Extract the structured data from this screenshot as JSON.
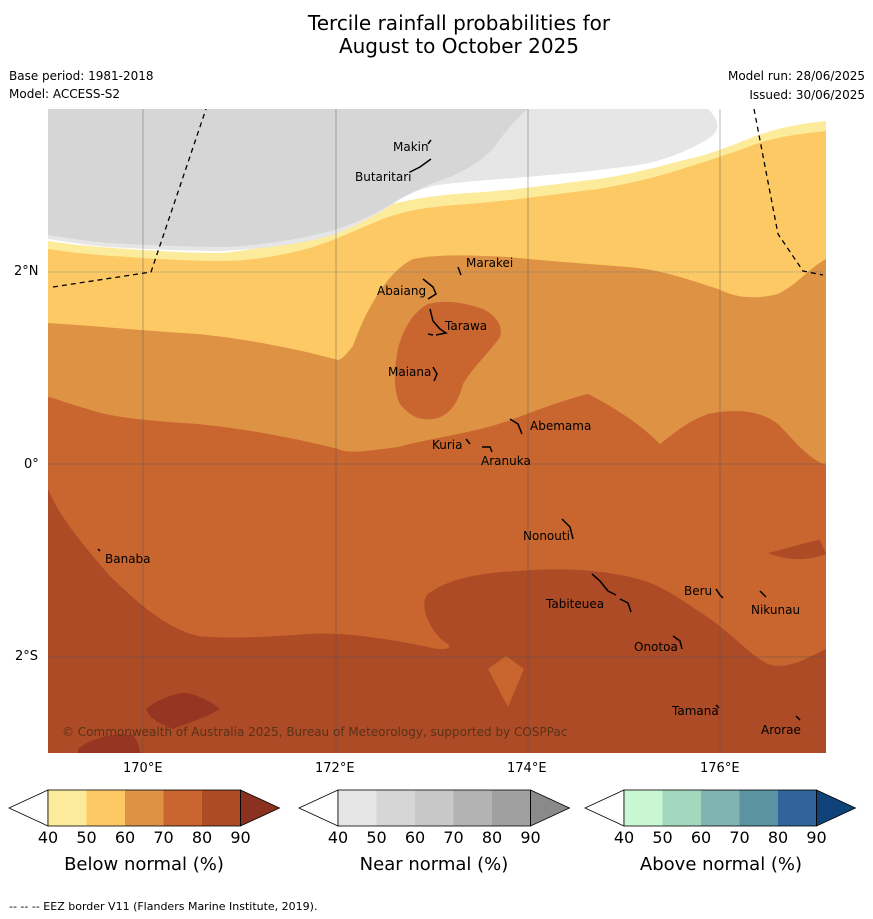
{
  "title": {
    "line1": "Tercile rainfall probabilities for",
    "line2": "August to October 2025"
  },
  "meta": {
    "base_period": "Base period: 1981-2018",
    "model": "Model: ACCESS-S2",
    "model_run": "Model run: 28/06/2025",
    "issued": "Issued: 30/06/2025"
  },
  "axes": {
    "lat_labels": [
      "2°N",
      "0°",
      "2°S"
    ],
    "lon_labels": [
      "170°E",
      "172°E",
      "174°E",
      "176°E"
    ]
  },
  "islands": [
    {
      "name": "Makin"
    },
    {
      "name": "Butaritari"
    },
    {
      "name": "Marakei"
    },
    {
      "name": "Abaiang"
    },
    {
      "name": "Tarawa"
    },
    {
      "name": "Maiana"
    },
    {
      "name": "Abemama"
    },
    {
      "name": "Kuria"
    },
    {
      "name": "Aranuka"
    },
    {
      "name": "Nonouti"
    },
    {
      "name": "Banaba"
    },
    {
      "name": "Beru"
    },
    {
      "name": "Tabiteuea"
    },
    {
      "name": "Nikunau"
    },
    {
      "name": "Onotoa"
    },
    {
      "name": "Tamana"
    },
    {
      "name": "Arorae"
    }
  ],
  "copyright": "© Commonwealth of Australia 2025, Bureau of Meteorology, supported by COSPPac",
  "colorbars": [
    {
      "title": "Below normal (%)",
      "labels": [
        "40",
        "50",
        "60",
        "70",
        "80",
        "90"
      ],
      "colors": [
        "#ffffff",
        "#fdeb9c",
        "#fdc964",
        "#de9244",
        "#c9652f",
        "#ad4b26",
        "#8c3020"
      ]
    },
    {
      "title": "Near normal (%)",
      "labels": [
        "40",
        "50",
        "60",
        "70",
        "80",
        "90"
      ],
      "colors": [
        "#ffffff",
        "#e6e6e6",
        "#d6d6d6",
        "#c8c8c8",
        "#b3b3b3",
        "#a0a0a0",
        "#8a8a8a"
      ]
    },
    {
      "title": "Above normal (%)",
      "labels": [
        "40",
        "50",
        "60",
        "70",
        "80",
        "90"
      ],
      "colors": [
        "#ffffff",
        "#c9f7d2",
        "#a3d8bf",
        "#7fb4b2",
        "#5c93a3",
        "#30649a",
        "#0e4279"
      ]
    }
  ],
  "footer": "-- -- -- EEZ border V11 (Flanders Marine Institute, 2019)."
}
